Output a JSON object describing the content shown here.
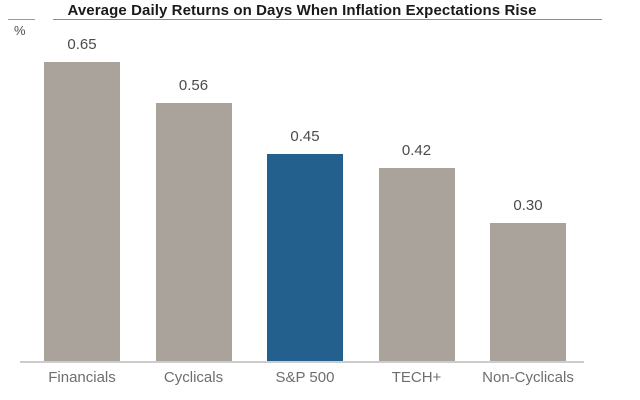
{
  "header": {
    "title": "Average Daily Returns on Days When Inflation Expectations Rise",
    "y_axis_unit": "%"
  },
  "chart_data": {
    "type": "bar",
    "title": "Average Daily Returns on Days When Inflation Expectations Rise",
    "xlabel": "",
    "ylabel": "%",
    "categories": [
      "Financials",
      "Cyclicals",
      "S&P 500",
      "TECH+",
      "Non-Cyclicals"
    ],
    "values": [
      0.65,
      0.56,
      0.45,
      0.42,
      0.3
    ],
    "value_labels": [
      "0.65",
      "0.56",
      "0.45",
      "0.42",
      "0.30"
    ],
    "highlight_index": 2,
    "bar_color": "#a9a39c",
    "highlight_color": "#24608e",
    "axis_line_color": "#cccccc",
    "ylim": [
      0,
      0.78
    ],
    "grid": false,
    "legend": false
  }
}
